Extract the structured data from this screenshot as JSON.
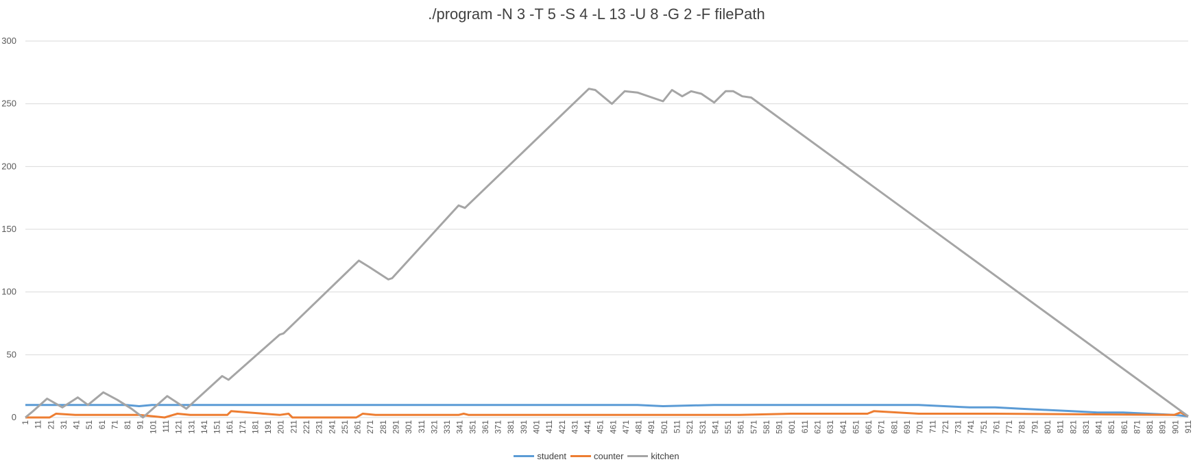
{
  "chart_data": {
    "type": "line",
    "title": "./program -N 3 -T 5 -S 4 -L 13 -U 8 -G 2 -F filePath",
    "xlabel": "",
    "ylabel": "",
    "ylim": [
      0,
      300
    ],
    "yticks": [
      0,
      50,
      100,
      150,
      200,
      250,
      300
    ],
    "xlim": [
      1,
      911
    ],
    "xticks": [
      1,
      11,
      21,
      31,
      41,
      51,
      61,
      71,
      81,
      91,
      101,
      111,
      121,
      131,
      141,
      151,
      161,
      171,
      181,
      191,
      201,
      211,
      221,
      231,
      241,
      251,
      261,
      271,
      281,
      291,
      301,
      311,
      321,
      331,
      341,
      351,
      361,
      371,
      381,
      391,
      401,
      411,
      421,
      431,
      441,
      451,
      461,
      471,
      481,
      491,
      501,
      511,
      521,
      531,
      541,
      551,
      561,
      571,
      581,
      591,
      601,
      611,
      621,
      631,
      641,
      651,
      661,
      671,
      681,
      691,
      701,
      711,
      721,
      731,
      741,
      751,
      761,
      771,
      781,
      791,
      801,
      811,
      821,
      831,
      841,
      851,
      861,
      871,
      881,
      891,
      901,
      911
    ],
    "grid": true,
    "legend_position": "bottom",
    "series": [
      {
        "name": "student",
        "color": "#5b9bd5",
        "x": [
          1,
          20,
          40,
          60,
          80,
          90,
          100,
          110,
          130,
          160,
          200,
          250,
          270,
          290,
          330,
          380,
          430,
          480,
          500,
          540,
          600,
          650,
          660,
          670,
          700,
          720,
          740,
          760,
          780,
          800,
          820,
          840,
          860,
          880,
          900,
          911
        ],
        "y": [
          10,
          10,
          10,
          10,
          10,
          9,
          10,
          10,
          10,
          10,
          10,
          10,
          10,
          10,
          10,
          10,
          10,
          10,
          9,
          10,
          10,
          10,
          10,
          10,
          10,
          9,
          8,
          8,
          7,
          6,
          5,
          4,
          4,
          3,
          2,
          1
        ]
      },
      {
        "name": "counter",
        "color": "#ed7d31",
        "x": [
          1,
          20,
          25,
          40,
          60,
          90,
          110,
          120,
          130,
          159,
          162,
          200,
          207,
          210,
          260,
          265,
          275,
          280,
          340,
          344,
          348,
          440,
          560,
          600,
          660,
          665,
          700,
          760,
          900,
          905,
          911
        ],
        "y": [
          0,
          0,
          3,
          2,
          2,
          2,
          0,
          3,
          2,
          2,
          5,
          2,
          3,
          0,
          0,
          3,
          2,
          2,
          2,
          3,
          2,
          2,
          2,
          3,
          3,
          5,
          3,
          3,
          2,
          4,
          1
        ]
      },
      {
        "name": "kitchen",
        "color": "#a5a5a5",
        "x": [
          1,
          7,
          18,
          30,
          42,
          50,
          62,
          73,
          84,
          93,
          112,
          127,
          155,
          160,
          200,
          203,
          262,
          270,
          285,
          288,
          340,
          345,
          442,
          447,
          460,
          470,
          480,
          500,
          507,
          515,
          522,
          530,
          540,
          549,
          555,
          562,
          569,
          911
        ],
        "y": [
          0,
          5,
          15,
          8,
          16,
          10,
          20,
          14,
          7,
          0,
          17,
          7,
          33,
          30,
          66,
          67,
          125,
          120,
          110,
          111,
          169,
          167,
          262,
          261,
          250,
          260,
          259,
          252,
          261,
          256,
          260,
          258,
          251,
          260,
          260,
          256,
          255,
          1
        ]
      }
    ]
  }
}
